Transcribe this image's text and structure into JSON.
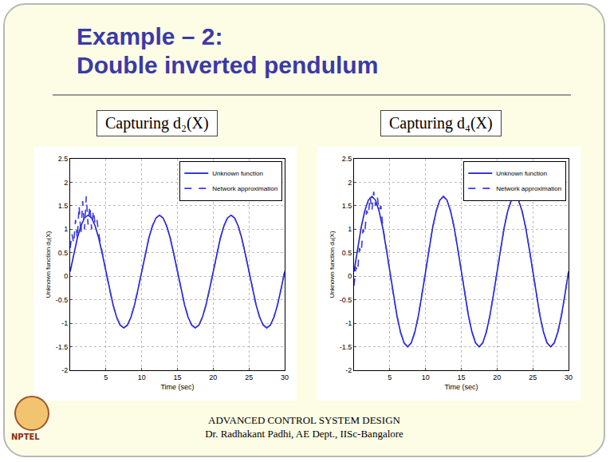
{
  "slide": {
    "title": [
      "Example – 2:",
      "Double inverted pendulum"
    ],
    "footer": [
      "ADVANCED CONTROL SYSTEM DESIGN",
      "Dr. Radhakant Padhi, AE Dept., IISc-Bangalore"
    ],
    "logo_text": "NPTEL"
  },
  "chart_data": [
    {
      "type": "line",
      "title": "Capturing d₂(X)",
      "x_label": "Time (sec)",
      "y_label": "Unknown function d₂(X)",
      "xlim": [
        0,
        30
      ],
      "xticks": [
        5,
        10,
        15,
        20,
        25,
        30
      ],
      "ylim": [
        -2,
        2.5
      ],
      "yticks": [
        -2,
        -1.5,
        -1,
        -0.5,
        0,
        0.5,
        1,
        1.5,
        2,
        2.5
      ],
      "grid": true,
      "legend": "upper right",
      "series": [
        {
          "name": "Unknown function",
          "color": "#1f1fd8",
          "line_style": "solid",
          "x": [
            0,
            0.5,
            1,
            1.5,
            2,
            2.5,
            3,
            3.5,
            4,
            4.5,
            5,
            5.5,
            6,
            6.5,
            7,
            7.5,
            8,
            8.5,
            9,
            9.5,
            10,
            10.5,
            11,
            11.5,
            12,
            12.5,
            13,
            13.5,
            14,
            14.5,
            15,
            15.5,
            16,
            16.5,
            17,
            17.5,
            18,
            18.5,
            19,
            19.5,
            20,
            20.5,
            21,
            21.5,
            22,
            22.5,
            23,
            23.5,
            24,
            24.5,
            25,
            25.5,
            26,
            26.5,
            27,
            27.5,
            28,
            28.5,
            29,
            29.5,
            30
          ],
          "values": [
            0.1,
            0.47,
            0.81,
            1.07,
            1.24,
            1.3,
            1.24,
            1.07,
            0.81,
            0.47,
            0.1,
            -0.27,
            -0.61,
            -0.87,
            -1.04,
            -1.1,
            -1.04,
            -0.87,
            -0.61,
            -0.27,
            0.1,
            0.47,
            0.81,
            1.07,
            1.24,
            1.3,
            1.24,
            1.07,
            0.81,
            0.47,
            0.1,
            -0.27,
            -0.61,
            -0.87,
            -1.04,
            -1.1,
            -1.04,
            -0.87,
            -0.61,
            -0.27,
            0.1,
            0.47,
            0.81,
            1.07,
            1.24,
            1.3,
            1.24,
            1.07,
            0.81,
            0.47,
            0.1,
            -0.27,
            -0.61,
            -0.87,
            -1.04,
            -1.1,
            -1.04,
            -0.87,
            -0.61,
            -0.27,
            0.1
          ]
        },
        {
          "name": "Network approximation",
          "color": "#3a3ae8",
          "line_style": "dash",
          "x": [
            0,
            0.25,
            0.5,
            0.75,
            1,
            1.25,
            1.5,
            1.75,
            2,
            2.25,
            2.5,
            2.75,
            3,
            3.25,
            3.5,
            3.75,
            4,
            4.5,
            5,
            5.5,
            6,
            6.5,
            7,
            7.5,
            8,
            8.5,
            9,
            9.5,
            10,
            10.5,
            11,
            11.5,
            12,
            12.5,
            13,
            13.5,
            14,
            14.5,
            15,
            15.5,
            16,
            16.5,
            17,
            17.5,
            18,
            18.5,
            19,
            19.5,
            20,
            20.5,
            21,
            21.5,
            22,
            22.5,
            23,
            23.5,
            24,
            24.5,
            25,
            25.5,
            26,
            26.5,
            27,
            27.5,
            28,
            28.5,
            29,
            29.5,
            30
          ],
          "values": [
            0.6,
            0.9,
            0.7,
            1.2,
            0.8,
            1.5,
            0.9,
            1.6,
            1.0,
            1.7,
            1.1,
            1.5,
            1.0,
            1.4,
            1.1,
            1.2,
            0.9,
            0.47,
            0.1,
            -0.27,
            -0.61,
            -0.87,
            -1.04,
            -1.1,
            -1.04,
            -0.87,
            -0.61,
            -0.27,
            0.1,
            0.47,
            0.81,
            1.07,
            1.24,
            1.3,
            1.24,
            1.07,
            0.81,
            0.47,
            0.1,
            -0.27,
            -0.61,
            -0.87,
            -1.04,
            -1.1,
            -1.04,
            -0.87,
            -0.61,
            -0.27,
            0.1,
            0.47,
            0.81,
            1.07,
            1.24,
            1.3,
            1.24,
            1.07,
            0.81,
            0.47,
            0.1,
            -0.27,
            -0.61,
            -0.87,
            -1.04,
            -1.1,
            -1.04,
            -0.87,
            -0.61,
            -0.27,
            0.1
          ]
        }
      ]
    },
    {
      "type": "line",
      "title": "Capturing d₄(X)",
      "x_label": "Time (sec)",
      "y_label": "Unknown function d₄(X)",
      "xlim": [
        0,
        30
      ],
      "xticks": [
        5,
        10,
        15,
        20,
        25,
        30
      ],
      "ylim": [
        -2,
        2.5
      ],
      "yticks": [
        -2,
        -1.5,
        -1,
        -0.5,
        0,
        0.5,
        1,
        1.5,
        2,
        2.5
      ],
      "grid": true,
      "legend": "upper right",
      "series": [
        {
          "name": "Unknown function",
          "color": "#1f1fd8",
          "line_style": "solid",
          "x": [
            0,
            0.5,
            1,
            1.5,
            2,
            2.5,
            3,
            3.5,
            4,
            4.5,
            5,
            5.5,
            6,
            6.5,
            7,
            7.5,
            8,
            8.5,
            9,
            9.5,
            10,
            10.5,
            11,
            11.5,
            12,
            12.5,
            13,
            13.5,
            14,
            14.5,
            15,
            15.5,
            16,
            16.5,
            17,
            17.5,
            18,
            18.5,
            19,
            19.5,
            20,
            20.5,
            21,
            21.5,
            22,
            22.5,
            23,
            23.5,
            24,
            24.5,
            25,
            25.5,
            26,
            26.5,
            27,
            27.5,
            28,
            28.5,
            29,
            29.5,
            30
          ],
          "values": [
            0.1,
            0.59,
            1.04,
            1.39,
            1.62,
            1.7,
            1.62,
            1.39,
            1.04,
            0.59,
            0.1,
            -0.39,
            -0.84,
            -1.19,
            -1.42,
            -1.5,
            -1.42,
            -1.19,
            -0.84,
            -0.39,
            0.1,
            0.59,
            1.04,
            1.39,
            1.62,
            1.7,
            1.62,
            1.39,
            1.04,
            0.59,
            0.1,
            -0.39,
            -0.84,
            -1.19,
            -1.42,
            -1.5,
            -1.42,
            -1.19,
            -0.84,
            -0.39,
            0.1,
            0.59,
            1.04,
            1.39,
            1.62,
            1.7,
            1.62,
            1.39,
            1.04,
            0.59,
            0.1,
            -0.39,
            -0.84,
            -1.19,
            -1.42,
            -1.5,
            -1.42,
            -1.19,
            -0.84,
            -0.39,
            0.1
          ]
        },
        {
          "name": "Network approximation",
          "color": "#3a3ae8",
          "line_style": "dash",
          "x": [
            0,
            0.25,
            0.5,
            0.75,
            1,
            1.25,
            1.5,
            1.75,
            2,
            2.25,
            2.5,
            2.75,
            3,
            3.25,
            3.5,
            3.75,
            4,
            4.5,
            5,
            5.5,
            6,
            6.5,
            7,
            7.5,
            8,
            8.5,
            9,
            9.5,
            10,
            10.5,
            11,
            11.5,
            12,
            12.5,
            13,
            13.5,
            14,
            14.5,
            15,
            15.5,
            16,
            16.5,
            17,
            17.5,
            18,
            18.5,
            19,
            19.5,
            20,
            20.5,
            21,
            21.5,
            22,
            22.5,
            23,
            23.5,
            24,
            24.5,
            25,
            25.5,
            26,
            26.5,
            27,
            27.5,
            28,
            28.5,
            29,
            29.5,
            30
          ],
          "values": [
            -0.2,
            0.2,
            0.1,
            0.6,
            0.5,
            1.0,
            0.9,
            1.4,
            1.3,
            1.7,
            1.4,
            1.8,
            1.5,
            1.7,
            1.4,
            1.5,
            1.1,
            0.59,
            0.1,
            -0.39,
            -0.84,
            -1.19,
            -1.42,
            -1.5,
            -1.42,
            -1.19,
            -0.84,
            -0.39,
            0.1,
            0.59,
            1.04,
            1.39,
            1.62,
            1.7,
            1.62,
            1.39,
            1.04,
            0.59,
            0.1,
            -0.39,
            -0.84,
            -1.19,
            -1.42,
            -1.5,
            -1.42,
            -1.19,
            -0.84,
            -0.39,
            0.1,
            0.59,
            1.04,
            1.39,
            1.62,
            1.7,
            1.62,
            1.39,
            1.04,
            0.59,
            0.1,
            -0.39,
            -0.84,
            -1.19,
            -1.42,
            -1.5,
            -1.42,
            -1.19,
            -0.84,
            -0.39,
            0.1
          ]
        }
      ]
    }
  ]
}
